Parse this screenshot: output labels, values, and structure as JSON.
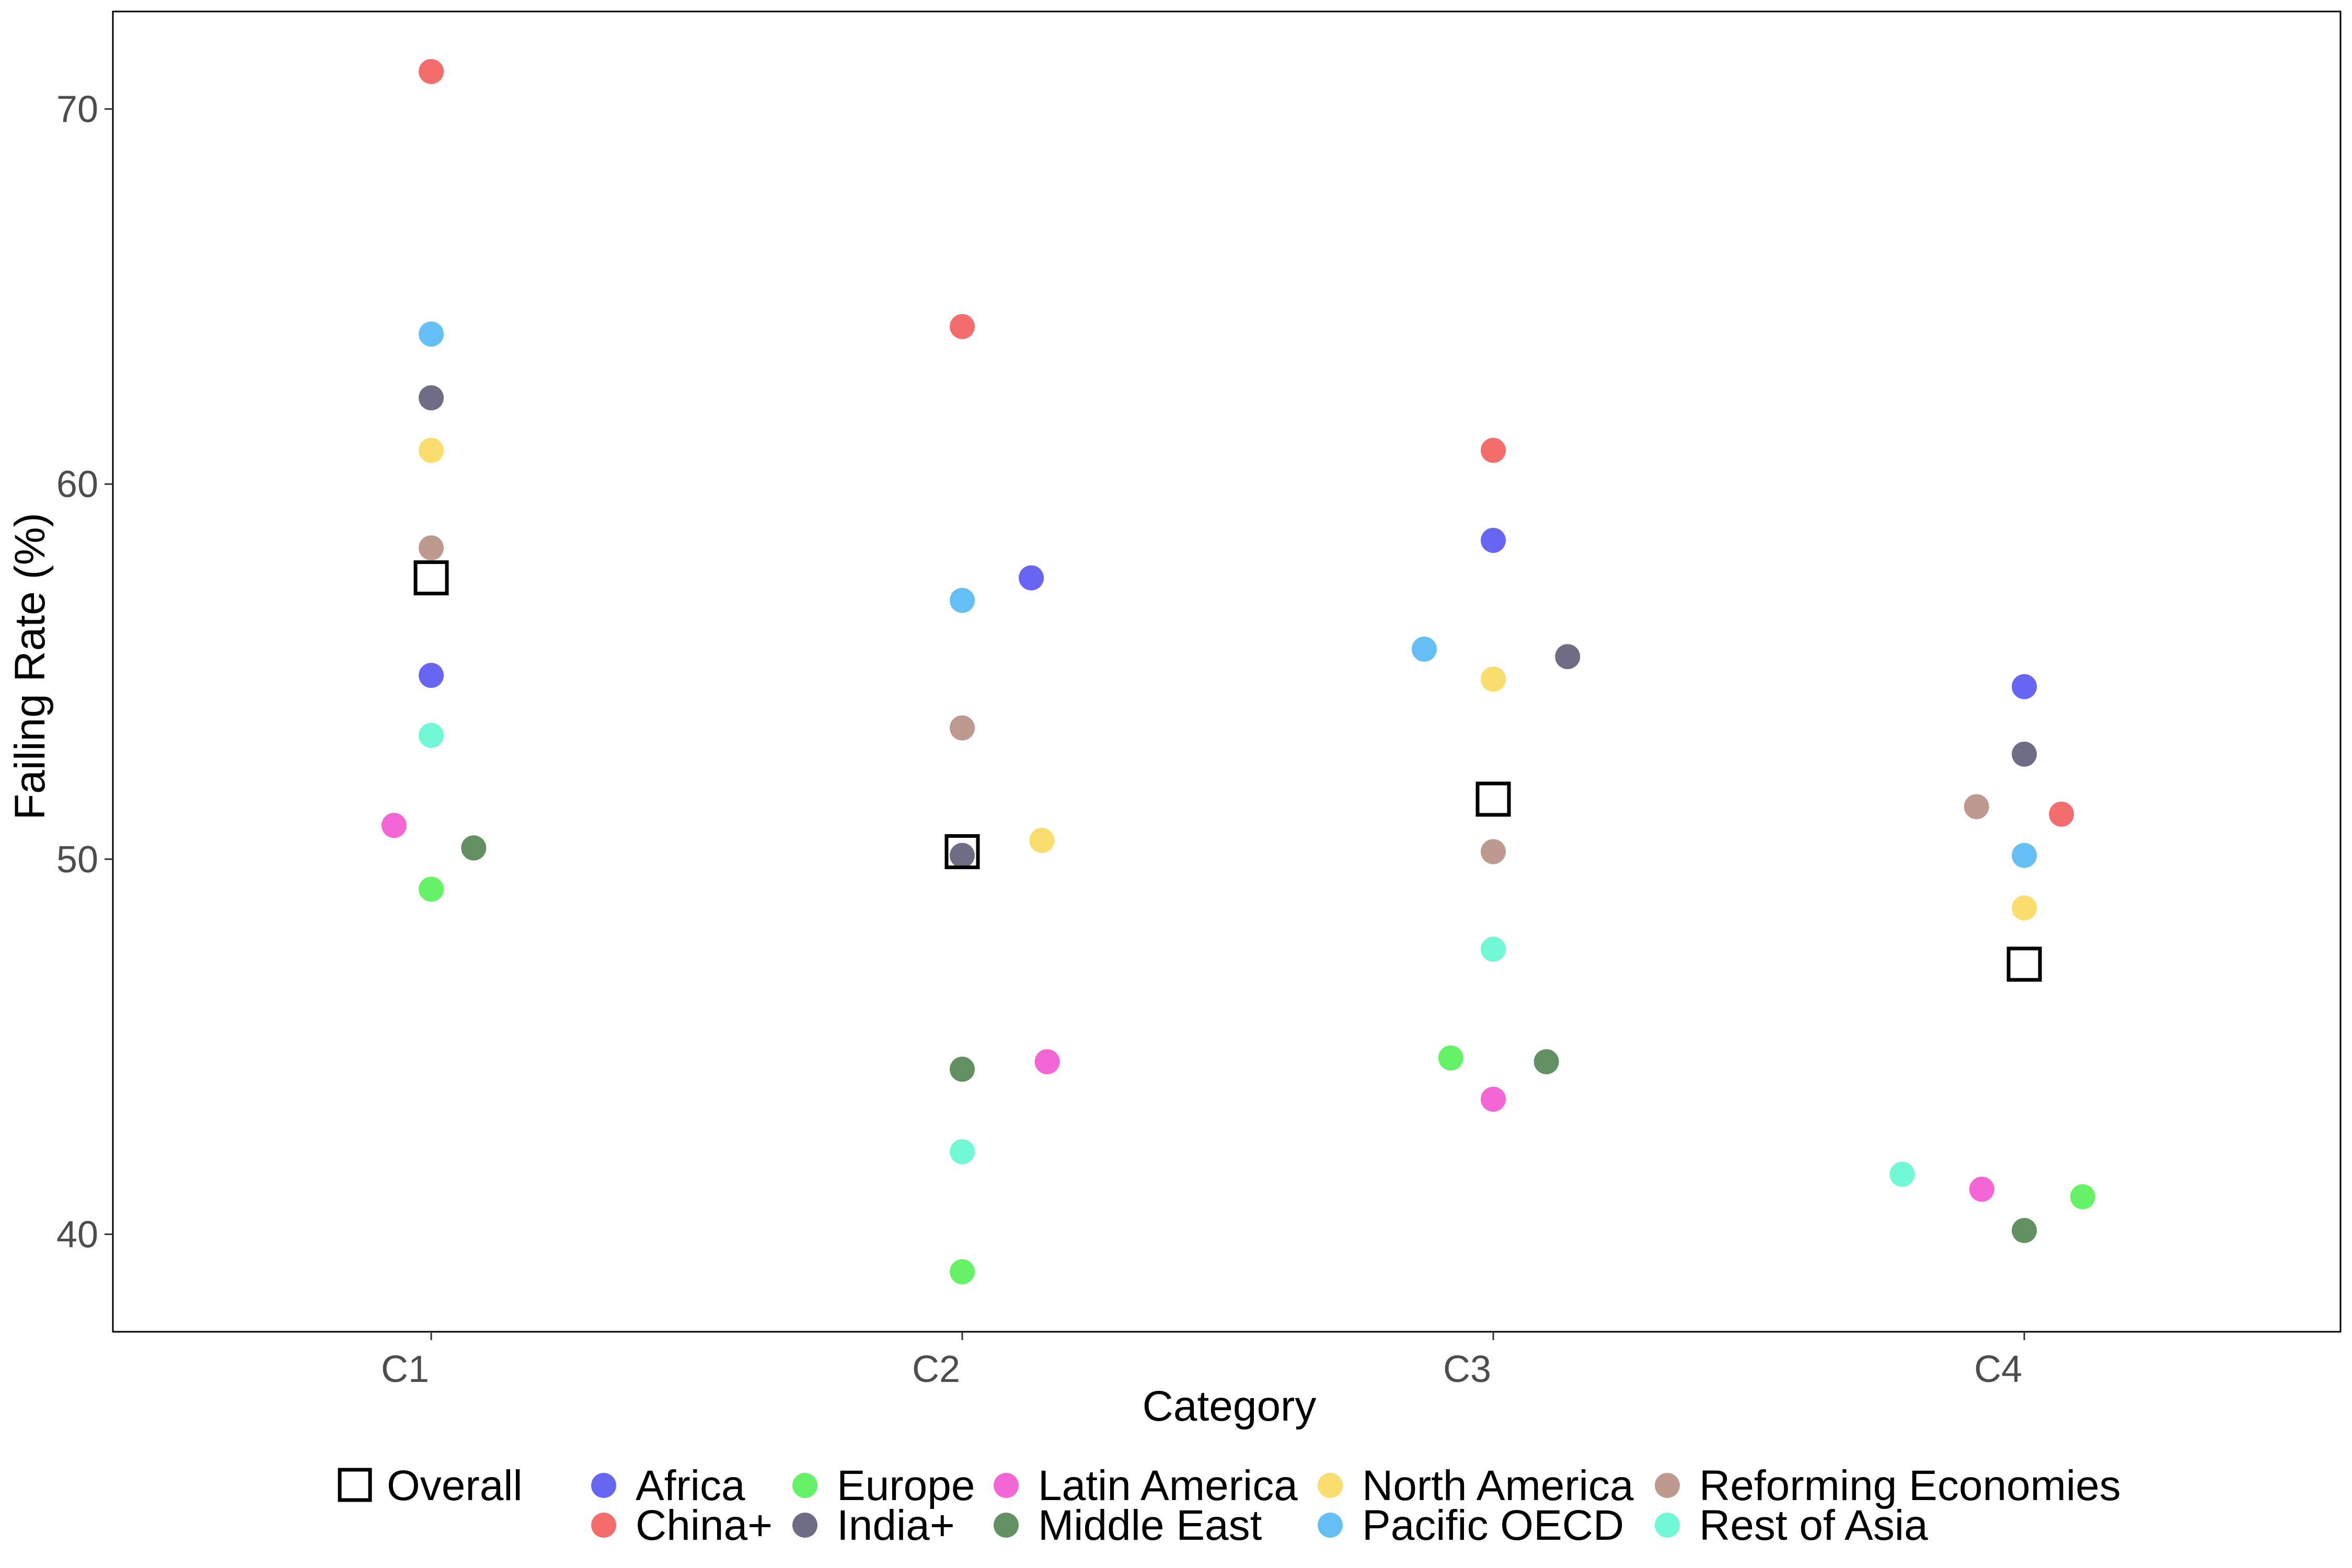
{
  "chart_data": {
    "type": "scatter",
    "xlabel": "Category",
    "ylabel": "Failing Rate (%)",
    "categories": [
      "C1",
      "C2",
      "C3",
      "C4"
    ],
    "ylim": [
      37.4,
      72.6
    ],
    "yticks": [
      40,
      50,
      60,
      70
    ],
    "grid": false,
    "legend_position": "bottom",
    "overall": {
      "name": "Overall",
      "values": [
        57.5,
        50.2,
        51.6,
        47.2
      ]
    },
    "series": [
      {
        "name": "Africa",
        "color": "#3333ee",
        "points": [
          [
            1,
            54.9
          ],
          [
            2.13,
            57.5
          ],
          [
            3,
            58.5
          ],
          [
            4,
            54.6
          ]
        ]
      },
      {
        "name": "China+",
        "color": "#f03c3c",
        "points": [
          [
            1,
            71.0
          ],
          [
            2,
            64.2
          ],
          [
            3,
            60.9
          ],
          [
            4.07,
            51.2
          ]
        ]
      },
      {
        "name": "Europe",
        "color": "#33ee33",
        "points": [
          [
            1,
            49.2
          ],
          [
            2,
            39.0
          ],
          [
            2.92,
            44.7
          ],
          [
            4.11,
            41.0
          ]
        ]
      },
      {
        "name": "India+",
        "color": "#3c3c5c",
        "points": [
          [
            1,
            62.3
          ],
          [
            2,
            50.1
          ],
          [
            3.14,
            55.4
          ],
          [
            4,
            52.8
          ]
        ]
      },
      {
        "name": "Latin America",
        "color": "#f033c8",
        "points": [
          [
            0.93,
            50.9
          ],
          [
            2.16,
            44.6
          ],
          [
            3,
            43.6
          ],
          [
            3.92,
            41.2
          ]
        ]
      },
      {
        "name": "Middle East",
        "color": "#2e6b2e",
        "points": [
          [
            1.08,
            50.3
          ],
          [
            2,
            44.4
          ],
          [
            3.1,
            44.6
          ],
          [
            4,
            40.1
          ]
        ]
      },
      {
        "name": "North America",
        "color": "#f7d23c",
        "points": [
          [
            1,
            60.9
          ],
          [
            2.15,
            50.5
          ],
          [
            3,
            54.8
          ],
          [
            4,
            48.7
          ]
        ]
      },
      {
        "name": "Pacific OECD",
        "color": "#33aaf0",
        "points": [
          [
            1,
            64.0
          ],
          [
            2,
            56.9
          ],
          [
            2.87,
            55.6
          ],
          [
            4,
            50.1
          ]
        ]
      },
      {
        "name": "Reforming Economies",
        "color": "#a8776b",
        "points": [
          [
            1,
            58.3
          ],
          [
            2,
            53.5
          ],
          [
            3,
            50.2
          ],
          [
            3.91,
            51.4
          ]
        ]
      },
      {
        "name": "Rest of Asia",
        "color": "#44f5c8",
        "points": [
          [
            1,
            53.3
          ],
          [
            2,
            42.2
          ],
          [
            3,
            47.6
          ],
          [
            3.77,
            41.6
          ]
        ]
      }
    ]
  }
}
